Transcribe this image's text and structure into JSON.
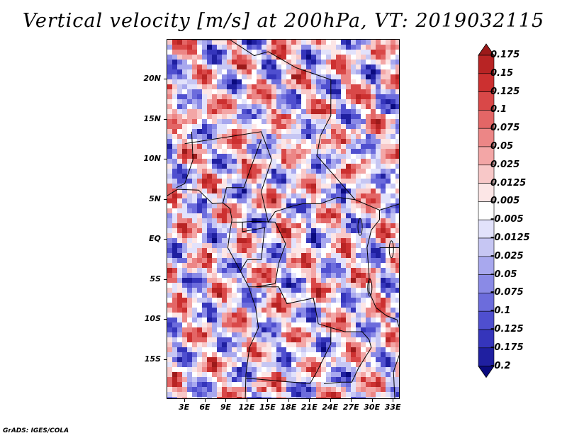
{
  "title": "Vertical velocity [m/s] at 200hPa, VT: 2019032115",
  "footer": "GrADS: IGES/COLA",
  "lat_labels": [
    "20N",
    "15N",
    "10N",
    "5N",
    "EQ",
    "5S",
    "10S",
    "15S"
  ],
  "lat_values": [
    20,
    15,
    10,
    5,
    0,
    -5,
    -10,
    -15
  ],
  "lon_labels": [
    "3E",
    "6E",
    "9E",
    "12E",
    "15E",
    "18E",
    "21E",
    "24E",
    "27E",
    "30E",
    "33E"
  ],
  "lon_values": [
    3,
    6,
    9,
    12,
    15,
    18,
    21,
    24,
    27,
    30,
    33
  ],
  "map_extent": {
    "lon_min": 0.5,
    "lon_max": 34,
    "lat_min": -20,
    "lat_max": 25
  },
  "colorbar": {
    "labels": [
      "0.175",
      "0.15",
      "0.125",
      "0.1",
      "0.075",
      "0.05",
      "0.025",
      "0.0125",
      "0.005",
      "-0.005",
      "-0.0125",
      "-0.025",
      "-0.05",
      "-0.075",
      "-0.1",
      "-0.125",
      "-0.175",
      "-0.2"
    ],
    "colors": [
      "#9c1a1a",
      "#b82424",
      "#cc3030",
      "#d94848",
      "#e36666",
      "#ec8686",
      "#f3a6a6",
      "#f8c8c8",
      "#fce6e6",
      "#ffffff",
      "#e2e2fb",
      "#c6c6f3",
      "#a8a8ee",
      "#8a8ae6",
      "#6c6cdc",
      "#4f4fcf",
      "#3535bb",
      "#1f1fa0",
      "#0a0a7e"
    ]
  }
}
